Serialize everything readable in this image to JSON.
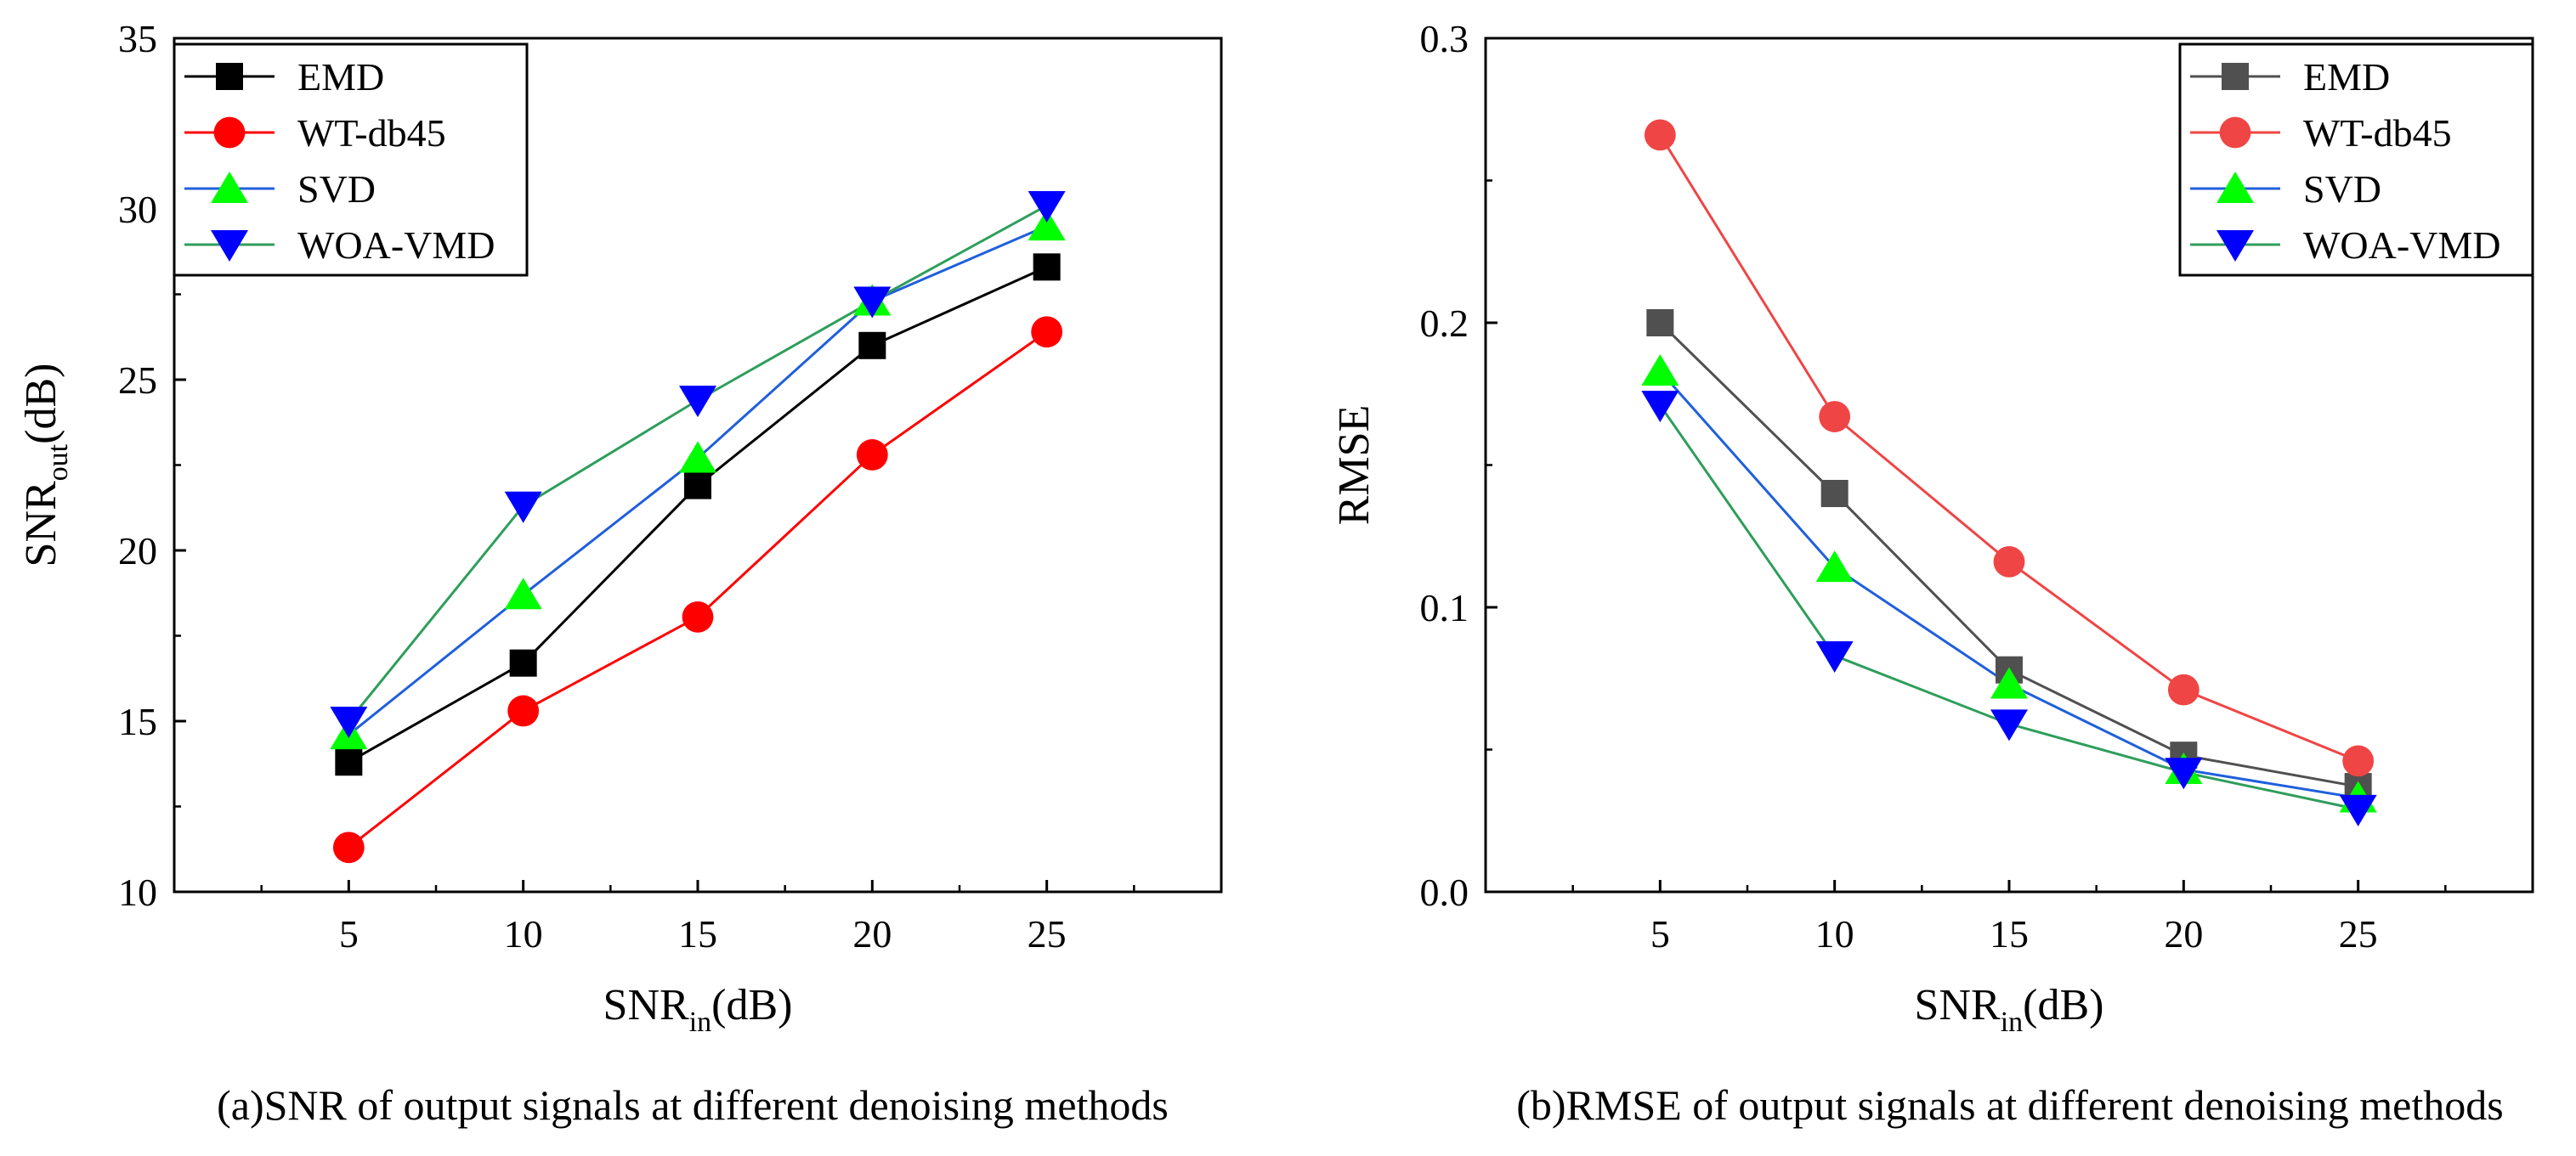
{
  "chart_data": [
    {
      "type": "line",
      "panel": "a",
      "caption": "(a)SNR of output signals at different denoising methods",
      "title": "",
      "xlabel": {
        "main": "SNR",
        "sub": "in",
        "unit": "(dB)"
      },
      "ylabel": {
        "main": "SNR",
        "sub": "out",
        "unit": "(dB)"
      },
      "xlim": [
        0,
        30
      ],
      "ylim": [
        10,
        35
      ],
      "xticks": [
        5,
        10,
        15,
        20,
        25
      ],
      "yticks": [
        10,
        15,
        20,
        25,
        30,
        35
      ],
      "ytick_labels": [
        "10",
        "15",
        "20",
        "25",
        "30",
        "35"
      ],
      "x": [
        5,
        10,
        15,
        20,
        25
      ],
      "legend_position": "top-left",
      "grid": false,
      "series": [
        {
          "name": "EMD",
          "values": [
            13.8,
            16.7,
            21.9,
            26.0,
            28.3
          ],
          "color": "#000000",
          "marker": "square"
        },
        {
          "name": "WT-db45",
          "values": [
            11.3,
            15.3,
            18.05,
            22.8,
            26.4
          ],
          "color": "#ff0000",
          "marker": "circle"
        },
        {
          "name": "SVD",
          "values": [
            14.6,
            18.7,
            22.7,
            27.3,
            29.5
          ],
          "color": "#00ff00",
          "line_color": "#1f5fdc",
          "marker": "triangle-up"
        },
        {
          "name": "WOA-VMD",
          "values": [
            15.0,
            21.3,
            24.4,
            27.3,
            30.1
          ],
          "color": "#0000ff",
          "line_color": "#2e9e5b",
          "marker": "triangle-down"
        }
      ]
    },
    {
      "type": "line",
      "panel": "b",
      "caption": "(b)RMSE of output signals at different denoising methods",
      "title": "",
      "xlabel": {
        "main": "SNR",
        "sub": "in",
        "unit": "(dB)"
      },
      "ylabel": {
        "main": "RMSE",
        "sub": "",
        "unit": ""
      },
      "xlim": [
        0,
        30
      ],
      "ylim": [
        0,
        0.3
      ],
      "xticks": [
        5,
        10,
        15,
        20,
        25
      ],
      "yticks": [
        0,
        0.1,
        0.2,
        0.3
      ],
      "ytick_labels": [
        "0.0",
        "0.1",
        "0.2",
        "0.3"
      ],
      "x": [
        5,
        10,
        15,
        20,
        25
      ],
      "legend_position": "top-right",
      "grid": false,
      "series": [
        {
          "name": "EMD",
          "values": [
            0.2,
            0.14,
            0.078,
            0.048,
            0.037
          ],
          "color": "#505050",
          "marker": "square"
        },
        {
          "name": "WT-db45",
          "values": [
            0.266,
            0.167,
            0.116,
            0.071,
            0.046
          ],
          "color": "#f04545",
          "marker": "circle"
        },
        {
          "name": "SVD",
          "values": [
            0.183,
            0.114,
            0.073,
            0.043,
            0.033
          ],
          "color": "#00ff00",
          "line_color": "#1f5fdc",
          "marker": "triangle-up"
        },
        {
          "name": "WOA-VMD",
          "values": [
            0.171,
            0.083,
            0.059,
            0.042,
            0.029
          ],
          "color": "#0000ff",
          "line_color": "#2e9e5b",
          "marker": "triangle-down"
        }
      ]
    }
  ]
}
